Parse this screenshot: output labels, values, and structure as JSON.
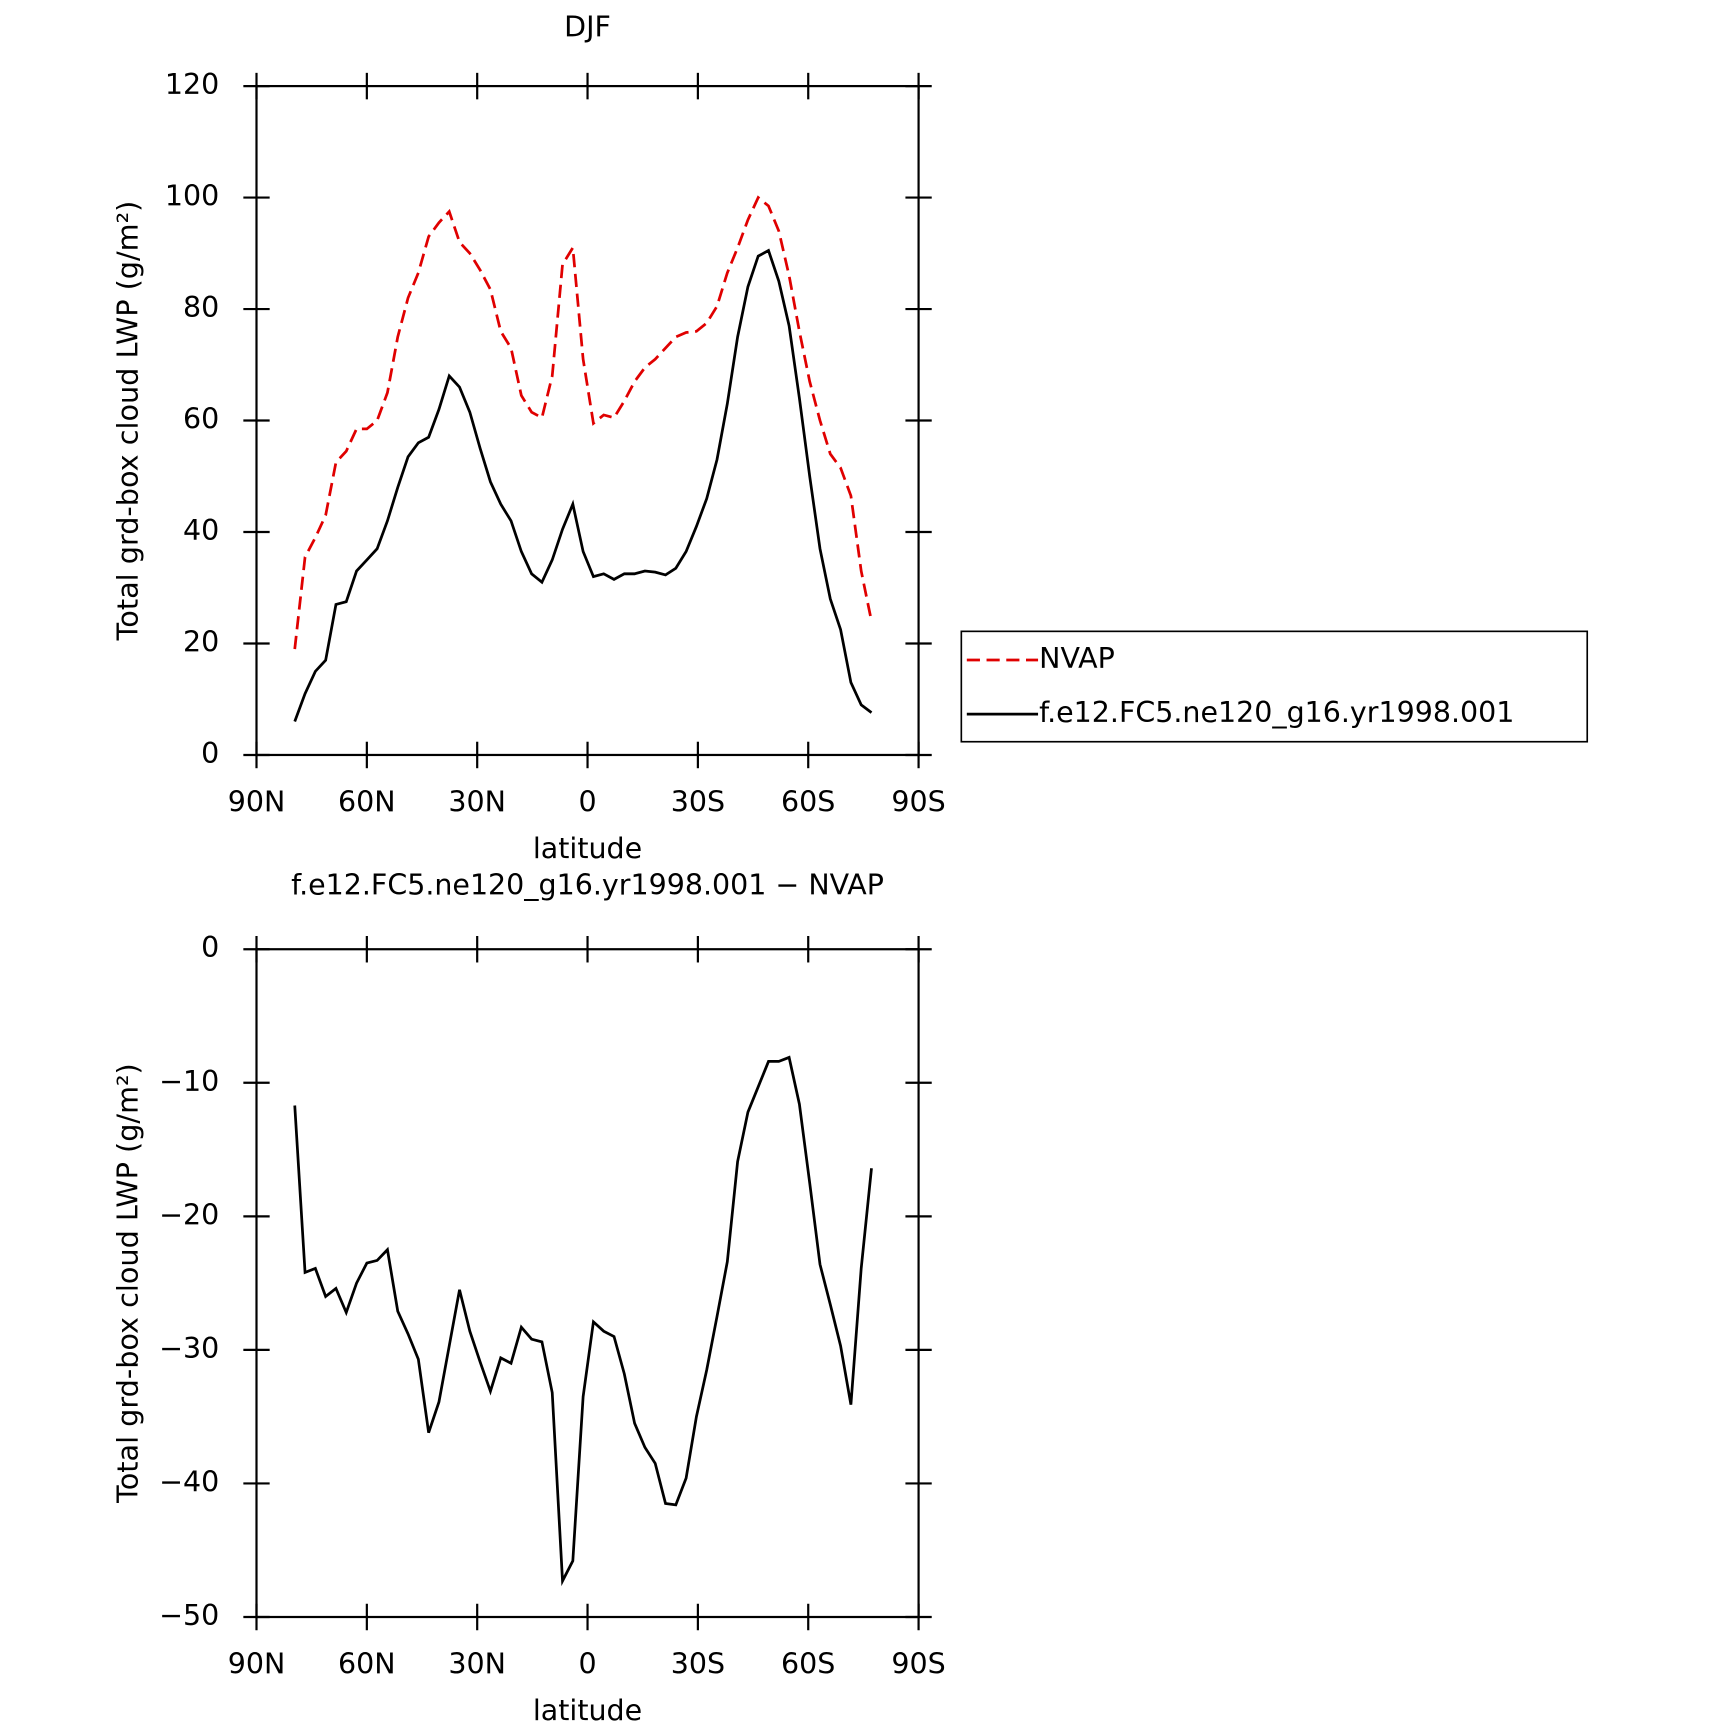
{
  "chart_data": [
    {
      "type": "line",
      "title": "DJF",
      "xlabel": "latitude",
      "ylabel": "Total grd-box cloud LWP (g/m²)",
      "xlim": [
        90,
        -90
      ],
      "xticks": [
        {
          "value": 90,
          "label": "90N"
        },
        {
          "value": 60,
          "label": "60N"
        },
        {
          "value": 30,
          "label": "30N"
        },
        0,
        {
          "value": -30,
          "label": "30S"
        },
        {
          "value": -60,
          "label": "60S"
        },
        {
          "value": -90,
          "label": "90S"
        }
      ],
      "ylim": [
        0,
        120
      ],
      "yticks": [
        0,
        20,
        40,
        60,
        80,
        100,
        120
      ],
      "x": [
        79.6,
        76.8,
        74.0,
        71.2,
        68.4,
        65.6,
        62.8,
        60.0,
        57.2,
        54.4,
        51.6,
        48.8,
        46.0,
        43.2,
        40.4,
        37.6,
        34.8,
        32.0,
        29.2,
        26.4,
        23.6,
        20.8,
        18.0,
        15.2,
        12.4,
        9.6,
        6.8,
        4.0,
        1.2,
        -1.6,
        -4.4,
        -7.2,
        -10.0,
        -12.8,
        -15.6,
        -18.4,
        -21.2,
        -24.0,
        -26.8,
        -29.6,
        -32.4,
        -35.2,
        -38.0,
        -40.8,
        -43.6,
        -46.4,
        -49.2,
        -52.0,
        -54.8,
        -57.6,
        -60.4,
        -63.2,
        -66.0,
        -68.8,
        -71.6,
        -74.4,
        -77.2
      ],
      "series": [
        {
          "name": "NVAP",
          "color": "#e00000",
          "style": "dashed",
          "values": [
            19,
            35.5,
            39,
            43,
            52.5,
            54.5,
            58.5,
            58.5,
            60,
            65,
            75,
            82,
            86.5,
            93,
            95.5,
            97.5,
            92,
            90,
            87,
            83.5,
            76,
            73,
            64.5,
            61.5,
            60.5,
            68,
            88,
            91,
            71,
            59.5,
            61,
            60.5,
            63.5,
            67,
            69.5,
            71,
            73,
            75,
            75.8,
            76,
            77.5,
            80.5,
            86.5,
            91,
            96,
            100,
            98.5,
            94,
            86,
            76,
            67,
            60,
            54,
            51.5,
            46.5,
            33,
            24
          ]
        },
        {
          "name": "f.e12.FC5.ne120_g16.yr1998.001",
          "color": "#000000",
          "style": "solid",
          "values": [
            6,
            11,
            15,
            17,
            27,
            27.5,
            33,
            35,
            37,
            42,
            48,
            53.5,
            56,
            57,
            62,
            68,
            66,
            61.5,
            55,
            49,
            45,
            42,
            36.5,
            32.5,
            31,
            35,
            40.5,
            45,
            36.5,
            32,
            32.5,
            31.5,
            32.5,
            32.5,
            33,
            32.8,
            32.3,
            33.5,
            36.5,
            41,
            46,
            53,
            63,
            75,
            84,
            89.5,
            90.5,
            85,
            77,
            64,
            50,
            37,
            28,
            22.5,
            13,
            9,
            7.6
          ]
        }
      ]
    },
    {
      "type": "line",
      "title": "f.e12.FC5.ne120_g16.yr1998.001 − NVAP",
      "xlabel": "latitude",
      "ylabel": "Total grd-box cloud LWP (g/m²)",
      "xlim": [
        90,
        -90
      ],
      "xticks": [
        {
          "value": 90,
          "label": "90N"
        },
        {
          "value": 60,
          "label": "60N"
        },
        {
          "value": 30,
          "label": "30N"
        },
        0,
        {
          "value": -30,
          "label": "30S"
        },
        {
          "value": -60,
          "label": "60S"
        },
        {
          "value": -90,
          "label": "90S"
        }
      ],
      "ylim": [
        -50,
        0
      ],
      "yticks": [
        0,
        {
          "value": -10,
          "label": "−10"
        },
        {
          "value": -20,
          "label": "−20"
        },
        {
          "value": -30,
          "label": "−30"
        },
        {
          "value": -40,
          "label": "−40"
        },
        {
          "value": -50,
          "label": "−50"
        }
      ],
      "x": [
        79.6,
        76.8,
        74.0,
        71.2,
        68.4,
        65.6,
        62.8,
        60.0,
        57.2,
        54.4,
        51.6,
        48.8,
        46.0,
        43.2,
        40.4,
        37.6,
        34.8,
        32.0,
        29.2,
        26.4,
        23.6,
        20.8,
        18.0,
        15.2,
        12.4,
        9.6,
        6.8,
        4.0,
        1.2,
        -1.6,
        -4.4,
        -7.2,
        -10.0,
        -12.8,
        -15.6,
        -18.4,
        -21.2,
        -24.0,
        -26.8,
        -29.6,
        -32.4,
        -35.2,
        -38.0,
        -40.8,
        -43.6,
        -46.4,
        -49.2,
        -52.0,
        -54.8,
        -57.6,
        -60.4,
        -63.2,
        -66.0,
        -68.8,
        -71.6,
        -74.4,
        -77.2
      ],
      "color": "#000000",
      "values": [
        -11.7,
        -24.2,
        -23.9,
        -26,
        -25.4,
        -27.2,
        -25,
        -23.5,
        -23.3,
        -22.5,
        -27.1,
        -28.8,
        -30.7,
        -36.2,
        -33.9,
        -29.7,
        -25.5,
        -28.6,
        -30.9,
        -33.1,
        -30.6,
        -31,
        -28.3,
        -29.2,
        -29.4,
        -33.2,
        -47.3,
        -45.8,
        -33.5,
        -27.9,
        -28.6,
        -29,
        -31.8,
        -35.5,
        -37.3,
        -38.5,
        -41.5,
        -41.6,
        -39.6,
        -35,
        -31.5,
        -27.5,
        -23.4,
        -15.9,
        -12.2,
        -10.3,
        -8.4,
        -8.4,
        -8.1,
        -11.6,
        -17.5,
        -23.6,
        -26.6,
        -29.7,
        -34.1,
        -23.9,
        -16.4
      ]
    }
  ]
}
